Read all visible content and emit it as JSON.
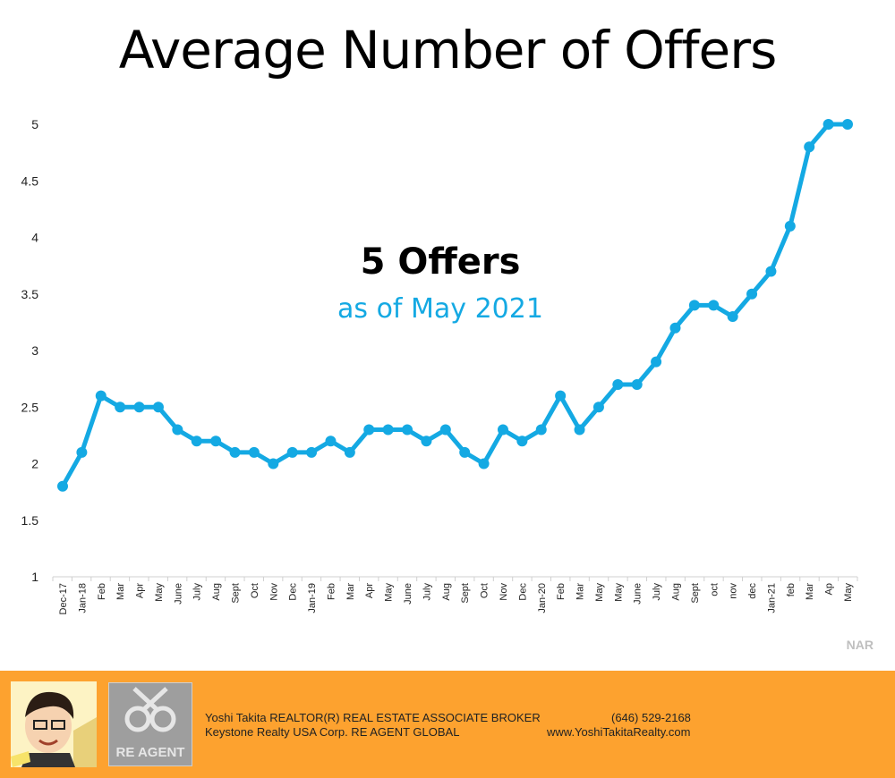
{
  "title": "Average Number of Offers",
  "annotation": {
    "headline": "5 Offers",
    "subline": "as of May 2021"
  },
  "source": "NAR",
  "colors": {
    "line": "#14a9e3",
    "footer": "#fda22f",
    "axis": "#d0d0d0"
  },
  "chart_data": {
    "type": "line",
    "title": "Average Number of Offers",
    "xlabel": "",
    "ylabel": "",
    "ylim": [
      1,
      5
    ],
    "yticks": [
      "1",
      "1.5",
      "2",
      "2.5",
      "3",
      "3.5",
      "4",
      "4.5",
      "5"
    ],
    "grid": false,
    "categories": [
      "Dec-17",
      "Jan-18",
      "Feb",
      "Mar",
      "Apr",
      "May",
      "June",
      "July",
      "Aug",
      "Sept",
      "Oct",
      "Nov",
      "Dec",
      "Jan-19",
      "Feb",
      "Mar",
      "Apr",
      "May",
      "June",
      "July",
      "Aug",
      "Sept",
      "Oct",
      "Nov",
      "Dec",
      "Jan-20",
      "Feb",
      "Mar",
      "May",
      "May",
      "June",
      "July",
      "Aug",
      "Sept",
      "oct",
      "nov",
      "dec",
      "Jan-21",
      "feb",
      "Mar",
      "Ap",
      "May"
    ],
    "series": [
      {
        "values": [
          1.8,
          2.1,
          2.6,
          2.5,
          2.5,
          2.5,
          2.3,
          2.2,
          2.2,
          2.1,
          2.1,
          2.0,
          2.1,
          2.1,
          2.2,
          2.1,
          2.3,
          2.3,
          2.3,
          2.2,
          2.3,
          2.1,
          2.0,
          2.3,
          2.2,
          2.3,
          2.6,
          2.3,
          2.5,
          2.7,
          2.7,
          2.9,
          3.2,
          3.4,
          3.4,
          3.3,
          3.5,
          3.7,
          4.1,
          4.8,
          5.0,
          5.0
        ]
      }
    ]
  },
  "footer": {
    "agent_name": "Yoshi Takita REALTOR(R) REAL ESTATE ASSOCIATE BROKER",
    "company": "Keystone Realty USA Corp.  RE AGENT GLOBAL",
    "phone": "(646) 529-2168",
    "website": "www.YoshiTakitaRealty.com",
    "logo_text": "RE AGENT",
    "avatar_icon": "agent-caricature-icon",
    "logo_icon": "re-agent-keys-logo-icon"
  }
}
